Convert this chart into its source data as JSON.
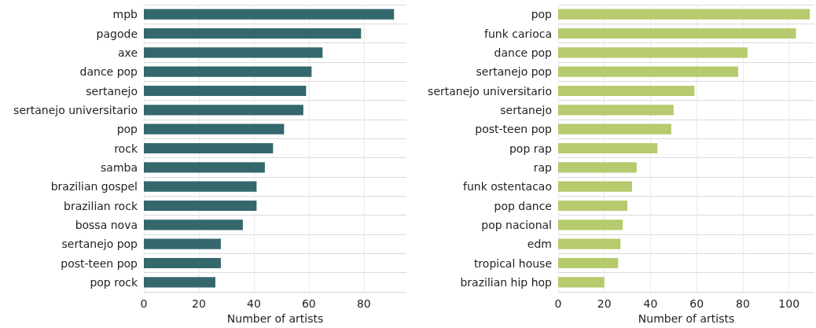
{
  "chart_data": [
    {
      "type": "bar",
      "orientation": "horizontal",
      "xlabel": "Number of artists",
      "categories": [
        "mpb",
        "pagode",
        "axe",
        "dance pop",
        "sertanejo",
        "sertanejo universitario",
        "pop",
        "rock",
        "samba",
        "brazilian gospel",
        "brazilian rock",
        "bossa nova",
        "sertanejo pop",
        "post-teen pop",
        "pop rock"
      ],
      "values": [
        91,
        79,
        65,
        61,
        59,
        58,
        51,
        47,
        44,
        41,
        41,
        36,
        28,
        28,
        26
      ],
      "color": "#34686c",
      "xlim": [
        0,
        95.5
      ],
      "xticks": [
        0,
        20,
        40,
        60,
        80
      ],
      "grid": true
    },
    {
      "type": "bar",
      "orientation": "horizontal",
      "xlabel": "Number of artists",
      "categories": [
        "pop",
        "funk carioca",
        "dance pop",
        "sertanejo pop",
        "sertanejo universitario",
        "sertanejo",
        "post-teen pop",
        "pop rap",
        "rap",
        "funk ostentacao",
        "pop dance",
        "pop nacional",
        "edm",
        "tropical house",
        "brazilian hip hop"
      ],
      "values": [
        109,
        103,
        82,
        78,
        59,
        50,
        49,
        43,
        34,
        32,
        30,
        28,
        27,
        26,
        20
      ],
      "color": "#b6ca6e",
      "xlim": [
        0,
        111
      ],
      "xticks": [
        0,
        20,
        40,
        60,
        80,
        100
      ],
      "grid": true
    }
  ]
}
